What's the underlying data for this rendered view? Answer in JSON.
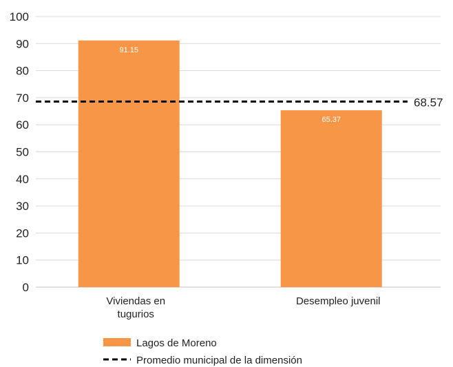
{
  "chart_data": {
    "type": "bar",
    "title": "",
    "xlabel": "",
    "ylabel": "",
    "categories": [
      [
        "Viviendas en",
        "tugurios"
      ],
      [
        "Desempleo juvenil"
      ]
    ],
    "series": [
      {
        "name": "Lagos de Moreno",
        "values": [
          91.15,
          65.37
        ],
        "labels": [
          "91.15",
          "65.37"
        ],
        "color": "#F79646"
      }
    ],
    "reference_line": {
      "name": "Promedio municipal de la dimensión",
      "value": 68.57,
      "label": "68.57",
      "style": "dashed",
      "color": "#000000"
    },
    "ylim": [
      0,
      100
    ],
    "yticks": [
      0,
      10,
      20,
      30,
      40,
      50,
      60,
      70,
      80,
      90,
      100
    ],
    "grid": true,
    "legend_position": "bottom"
  }
}
